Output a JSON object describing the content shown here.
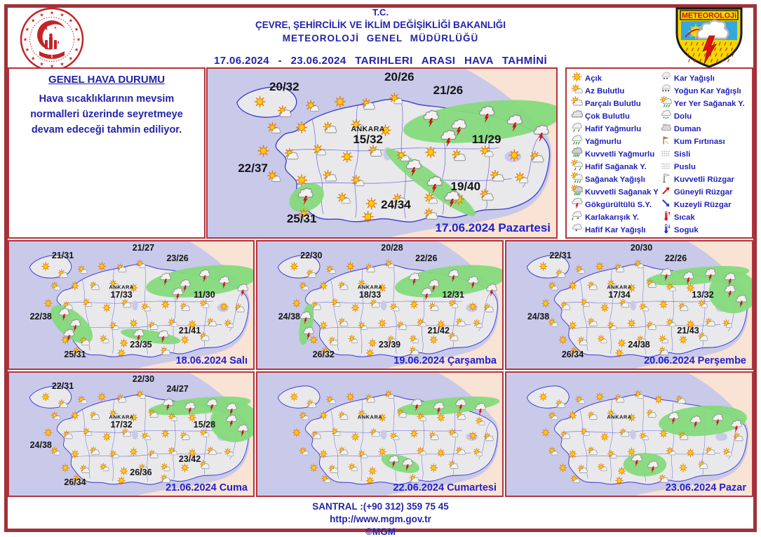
{
  "header": {
    "line1": "T.C.",
    "line2": "ÇEVRE, ŞEHİRCİLİK VE İKLİM DEĞİŞİKLİĞİ BAKANLIĞI",
    "line3": "METEOROLOJİ GENEL MÜDÜRLÜĞÜ",
    "date_range": "17.06.2024 - 23.06.2024 TARIHLERI ARASI HAVA TAHMİNİ",
    "right_logo_text": "METEOROLOJi"
  },
  "outlook": {
    "title": "GENEL HAVA DURUMU",
    "text": "Hava sıcaklıklarının mevsim normalleri üzerinde seyretmeye devam edeceği tahmin ediliyor."
  },
  "legend": {
    "columns": [
      [
        {
          "icon": "sun",
          "label": "Açık"
        },
        {
          "icon": "sun-small-cloud",
          "label": "Az Bulutlu"
        },
        {
          "icon": "sun-cloud",
          "label": "Parçalı Bulutlu"
        },
        {
          "icon": "cloud",
          "label": "Çok Bulutlu"
        },
        {
          "icon": "rain-1",
          "label": "Hafif Yağmurlu"
        },
        {
          "icon": "rain-2",
          "label": "Yağmurlu"
        },
        {
          "icon": "rain-3",
          "label": "Kuvvetli Yağmurlu"
        },
        {
          "icon": "sun-rain-1",
          "label": "Hafif Sağanak Y."
        },
        {
          "icon": "sun-rain-2",
          "label": "Sağanak Yağışlı"
        },
        {
          "icon": "sun-rain-3",
          "label": "Kuvvetli Sağanak Y"
        },
        {
          "icon": "storm",
          "label": "Gökgürültülü S.Y."
        },
        {
          "icon": "sleet",
          "label": "Karlakarışık Y."
        },
        {
          "icon": "snow-1",
          "label": "Hafif Kar Yağışlı"
        }
      ],
      [
        {
          "icon": "snow-2",
          "label": "Kar Yağışlı"
        },
        {
          "icon": "snow-3",
          "label": "Yoğun Kar Yağışlı"
        },
        {
          "icon": "sun-rain-2",
          "label": "Yer Yer Sağanak Y."
        },
        {
          "icon": "hail",
          "label": "Dolu"
        },
        {
          "icon": "smoke",
          "label": "Duman"
        },
        {
          "icon": "sand",
          "label": "Kum Fırtınası"
        },
        {
          "icon": "fog",
          "label": "Sisli"
        },
        {
          "icon": "haze",
          "label": "Puslu"
        },
        {
          "icon": "wind-flag",
          "label": "Kuvvetli Rüzgar"
        },
        {
          "icon": "arrow-ne",
          "label": "Güneyli Rüzgar"
        },
        {
          "icon": "arrow-se",
          "label": "Kuzeyli Rüzgar"
        },
        {
          "icon": "thermo-hot",
          "label": "Sıcak"
        },
        {
          "icon": "thermo-cold",
          "label": "Soguk"
        }
      ]
    ]
  },
  "maps": [
    {
      "date_label": "17.06.2024 Pazartesi",
      "city_label": "ANKARA",
      "temps": {
        "nw": "20/32",
        "n": "20/26",
        "ne": "21/26",
        "e": "11/29",
        "center": "15/32",
        "w": "22/37",
        "se": "19/40",
        "s": "24/34",
        "sw": "25/31"
      },
      "rain_regions": [
        "ne-coast-strip",
        "sw-blob",
        "central-south-strip"
      ]
    },
    {
      "date_label": "18.06.2024 Salı",
      "city_label": "ANKARA",
      "temps": {
        "nw": "21/31",
        "n": "21/27",
        "ne": "23/26",
        "e": "11/30",
        "center": "17/33",
        "w": "22/38",
        "se": "21/41",
        "s": "23/35",
        "sw": "25/31"
      },
      "rain_regions": [
        "ne-coast-strip",
        "west-inland-blob",
        "south-small-strip"
      ]
    },
    {
      "date_label": "19.06.2024 Çarşamba",
      "city_label": "ANKARA",
      "temps": {
        "nw": "22/30",
        "n": "20/28",
        "ne": "22/26",
        "e": "12/31",
        "center": "18/33",
        "w": "24/38",
        "se": "21/42",
        "s": "23/39",
        "sw": "26/32"
      },
      "rain_regions": [
        "ne-coast-strip",
        "west-coast-sliver"
      ]
    },
    {
      "date_label": "20.06.2024 Perşembe",
      "city_label": "ANKARA",
      "temps": {
        "nw": "22/31",
        "n": "20/30",
        "ne": "22/26",
        "e": "13/32",
        "center": "17/34",
        "w": "24/38",
        "se": "21/43",
        "s": "24/38",
        "sw": "26/34"
      },
      "rain_regions": [
        "ne-coast-thin",
        "ne-far-corner"
      ]
    },
    {
      "date_label": "21.06.2024 Cuma",
      "city_label": "ANKARA",
      "temps": {
        "nw": "22/31",
        "n": "22/30",
        "ne": "24/27",
        "e": "15/28",
        "center": "17/32",
        "w": "24/38",
        "se": "23/42",
        "s": "26/36",
        "sw": "26/34"
      },
      "rain_regions": [
        "ne-coast-thin",
        "ne-far-corner"
      ]
    },
    {
      "date_label": "22.06.2024 Cumartesi",
      "city_label": "ANKARA",
      "temps": {},
      "rain_regions": [
        "ne-coast-thin",
        "adana-blob"
      ]
    },
    {
      "date_label": "23.06.2024 Pazar",
      "city_label": "ANKARA",
      "temps": {},
      "rain_regions": [
        "ne-inner-blob",
        "south-blob"
      ]
    }
  ],
  "footer": {
    "phone": "SANTRAL :(+90 312) 359 75 45",
    "url": "http://www.mgm.gov.tr",
    "copyright": "©MGM"
  },
  "colors": {
    "navy_text": "#2323a8",
    "legend_text": "#1f1fb8",
    "panel_border": "#b5333b",
    "outer_frame": "#a0323a",
    "sea": "#c9c9ea",
    "land": "#e9e9ec",
    "province_blue": "#3b3bd1",
    "rain_green": "#85da7c",
    "neighbor_peach": "#f8e3d4",
    "date_blue": "#2121cc",
    "storm_red": "#e01010"
  }
}
